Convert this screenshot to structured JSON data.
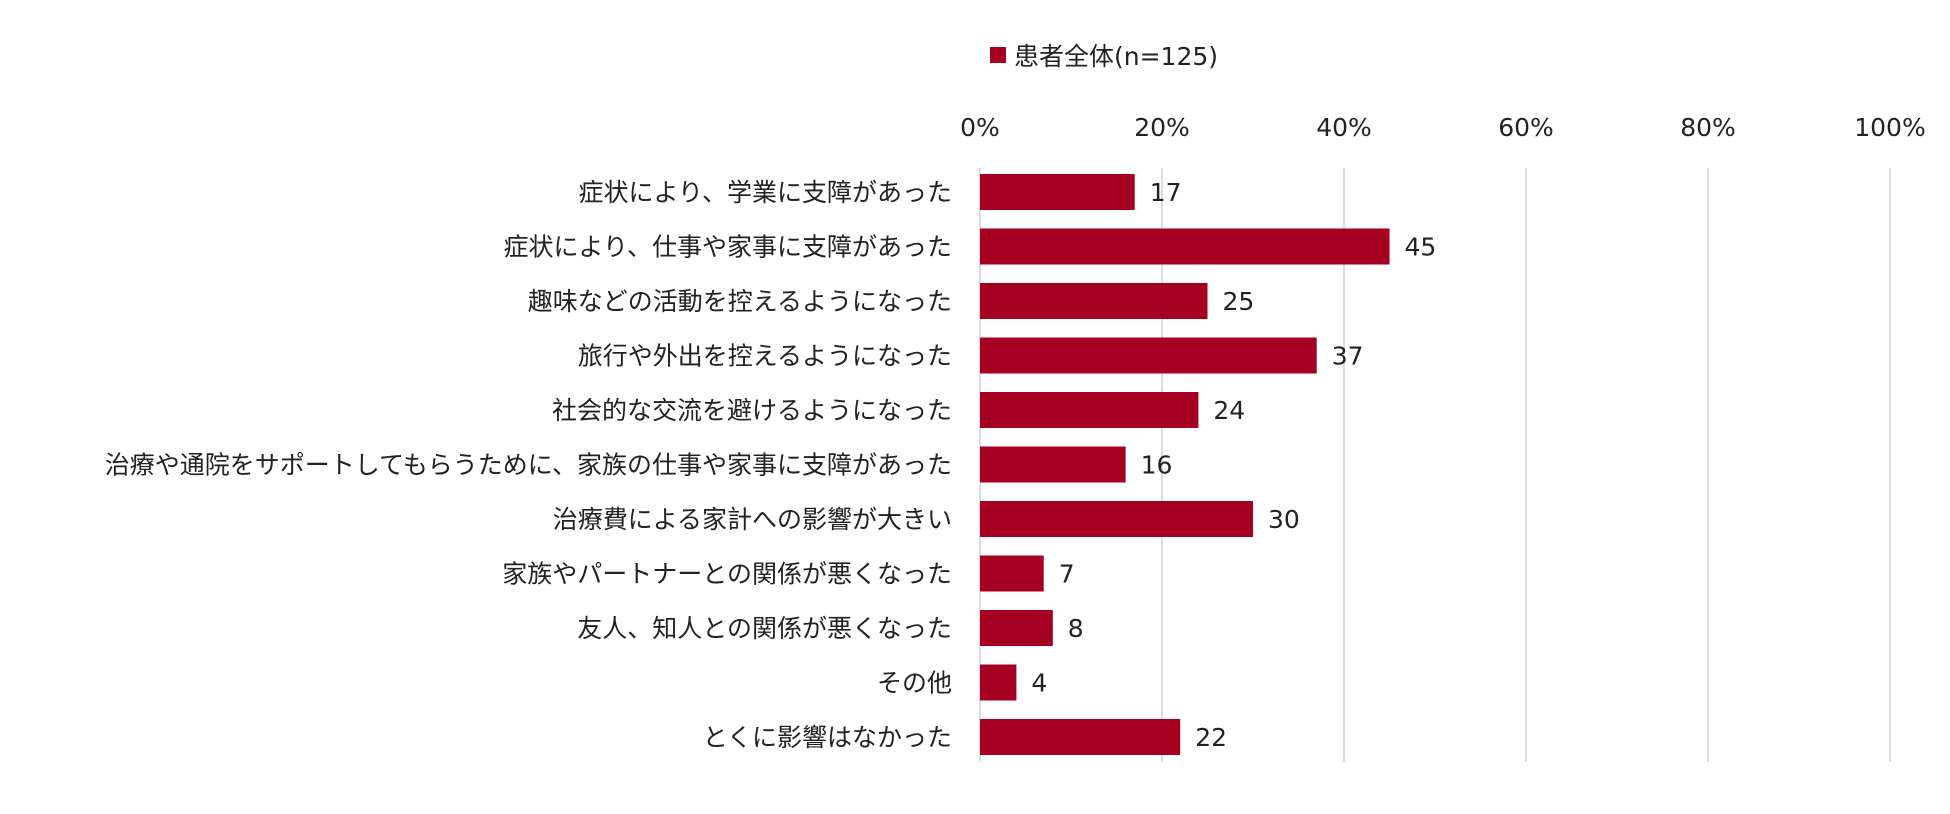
{
  "colors": {
    "bar": "#a50021",
    "grid": "#d0d0d8",
    "text": "#222222"
  },
  "legend": {
    "label": "患者全体(n=125)"
  },
  "chart_data": {
    "type": "bar",
    "orientation": "horizontal",
    "categories": [
      "症状により、学業に支障があった",
      "症状により、仕事や家事に支障があった",
      "趣味などの活動を控えるようになった",
      "旅行や外出を控えるようになった",
      "社会的な交流を避けるようになった",
      "治療や通院をサポートしてもらうために、家族の仕事や家事に支障があった",
      "治療費による家計への影響が大きい",
      "家族やパートナーとの関係が悪くなった",
      "友人、知人との関係が悪くなった",
      "その他",
      "とくに影響はなかった"
    ],
    "series": [
      {
        "name": "患者全体(n=125)",
        "values": [
          17,
          45,
          25,
          37,
          24,
          16,
          30,
          7,
          8,
          4,
          22
        ]
      }
    ],
    "xlim": [
      0,
      100
    ],
    "x_ticks": [
      "0%",
      "20%",
      "40%",
      "60%",
      "80%",
      "100%"
    ],
    "grid": true,
    "legend_position": "top"
  }
}
